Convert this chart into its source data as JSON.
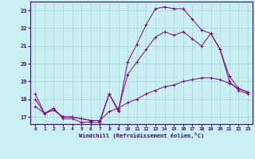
{
  "xlabel": "Windchill (Refroidissement éolien,°C)",
  "background_color": "#c8f0f0",
  "grid_color": "#a8d8d8",
  "line_color": "#800080",
  "x_ticks": [
    0,
    1,
    2,
    3,
    4,
    5,
    6,
    7,
    8,
    9,
    10,
    11,
    12,
    13,
    14,
    15,
    16,
    17,
    18,
    19,
    20,
    21,
    22,
    23
  ],
  "y_ticks": [
    17,
    18,
    19,
    20,
    21,
    22,
    23
  ],
  "xlim": [
    -0.5,
    23.5
  ],
  "ylim": [
    16.6,
    23.5
  ],
  "series1_x": [
    0,
    1,
    2,
    3,
    4,
    5,
    6,
    7,
    8,
    9,
    10,
    11,
    12,
    13,
    14,
    15,
    16,
    17,
    18,
    19,
    20,
    21,
    22,
    23
  ],
  "series1_y": [
    18.3,
    17.2,
    17.5,
    16.9,
    16.9,
    16.7,
    16.7,
    16.7,
    18.3,
    17.3,
    20.1,
    21.1,
    22.2,
    23.1,
    23.2,
    23.1,
    23.1,
    22.5,
    21.9,
    21.7,
    20.8,
    19.3,
    18.6,
    18.4
  ],
  "series2_x": [
    0,
    1,
    2,
    3,
    4,
    5,
    6,
    7,
    8,
    9,
    10,
    11,
    12,
    13,
    14,
    15,
    16,
    17,
    18,
    19,
    20,
    21,
    22,
    23
  ],
  "series2_y": [
    17.6,
    17.2,
    17.4,
    17.0,
    17.0,
    16.9,
    16.8,
    16.8,
    17.3,
    17.5,
    17.8,
    18.0,
    18.3,
    18.5,
    18.7,
    18.8,
    19.0,
    19.1,
    19.2,
    19.2,
    19.1,
    18.9,
    18.6,
    18.4
  ],
  "series3_x": [
    0,
    1,
    2,
    3,
    4,
    5,
    6,
    7,
    8,
    9,
    10,
    11,
    12,
    13,
    14,
    15,
    16,
    17,
    18,
    19,
    20,
    21,
    22,
    23
  ],
  "series3_y": [
    18.0,
    17.2,
    17.4,
    17.0,
    17.0,
    16.9,
    16.8,
    16.8,
    18.3,
    17.4,
    19.4,
    20.1,
    20.8,
    21.5,
    21.8,
    21.6,
    21.8,
    21.4,
    21.0,
    21.7,
    20.8,
    19.0,
    18.5,
    18.3
  ]
}
